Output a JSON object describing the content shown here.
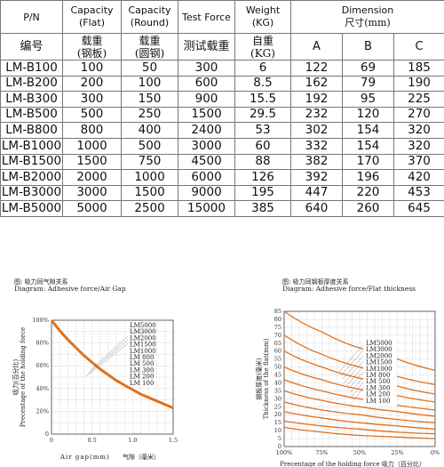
{
  "table": {
    "header": {
      "pn": "P/N",
      "cap_flat": [
        "Capacity",
        "(Flat)"
      ],
      "cap_round": [
        "Capacity",
        "(Round)"
      ],
      "test_force": "Test Force",
      "weight": [
        "Weight",
        "(KG)"
      ],
      "dimension": [
        "Dimension",
        "尺寸(mm)"
      ]
    },
    "subheader": {
      "pn": "编号",
      "cap_flat": [
        "载重",
        "(钢板)"
      ],
      "cap_round": [
        "载重",
        "(圆钢)"
      ],
      "test_force": "测试载重",
      "weight": [
        "自重",
        "(KG)"
      ],
      "a": "A",
      "b": "B",
      "c": "C"
    },
    "rows": [
      {
        "pn": "LM-B100",
        "flat": "100",
        "round": "50",
        "test": "300",
        "weight": "6",
        "a": "122",
        "b": "69",
        "c": "185"
      },
      {
        "pn": "LM-B200",
        "flat": "200",
        "round": "100",
        "test": "600",
        "weight": "8.5",
        "a": "162",
        "b": "79",
        "c": "190"
      },
      {
        "pn": "LM-B300",
        "flat": "300",
        "round": "150",
        "test": "900",
        "weight": "15.5",
        "a": "192",
        "b": "95",
        "c": "225"
      },
      {
        "pn": "LM-B500",
        "flat": "500",
        "round": "250",
        "test": "1500",
        "weight": "29.5",
        "a": "232",
        "b": "120",
        "c": "270"
      },
      {
        "pn": "LM-B800",
        "flat": "800",
        "round": "400",
        "test": "2400",
        "weight": "53",
        "a": "302",
        "b": "154",
        "c": "320"
      },
      {
        "pn": "LM-B1000",
        "flat": "1000",
        "round": "500",
        "test": "3000",
        "weight": "60",
        "a": "332",
        "b": "154",
        "c": "320"
      },
      {
        "pn": "LM-B1500",
        "flat": "1500",
        "round": "750",
        "test": "4500",
        "weight": "88",
        "a": "382",
        "b": "170",
        "c": "370"
      },
      {
        "pn": "LM-B2000",
        "flat": "2000",
        "round": "1000",
        "test": "6000",
        "weight": "126",
        "a": "392",
        "b": "196",
        "c": "420"
      },
      {
        "pn": "LM-B3000",
        "flat": "3000",
        "round": "1500",
        "test": "9000",
        "weight": "195",
        "a": "447",
        "b": "220",
        "c": "453"
      },
      {
        "pn": "LM-B5000",
        "flat": "5000",
        "round": "2500",
        "test": "15000",
        "weight": "385",
        "a": "640",
        "b": "260",
        "c": "645"
      }
    ]
  },
  "charts": {
    "left": {
      "caption_cn": "图: 吸力同气隙关系",
      "caption_en": "Diagram: Adhesive force/Air Gap",
      "ylabel_cn": "吸力(百分比)",
      "ylabel_en": "Precentage of the holding force",
      "xlabel_en": "Air gap(mm)",
      "xlabel_cn": "气隙（毫米）",
      "legend": [
        "LM5000",
        "LM3000",
        "LM2000",
        "LM1500",
        "LM1000",
        "LM  800",
        "LM  500",
        "LM  300",
        "LM  200",
        "LM  100"
      ],
      "line_color": "#e0701e"
    },
    "right": {
      "caption_cn": "图: 吸力同钢板厚度关系",
      "caption_en": "Diagram: Adhesive force/Flat thickness",
      "ylabel_cn": "钢板厚度(毫米)",
      "ylabel_en": "Thickness of the flat(mm)",
      "xlabel": "Precentage of the holding force 吸力（百分比）",
      "legend": [
        "LM5000",
        "LM3000",
        "LM2000",
        "LM1500",
        "LM1000",
        "LM  800",
        "LM  500",
        "LM  300",
        "LM  200",
        "LM  100"
      ],
      "line_color": "#e0701e"
    }
  },
  "chart_data": [
    {
      "type": "line",
      "xlabel": "Air gap(mm) 气隙（毫米）",
      "ylabel": "Precentage of the holding force",
      "xlim": [
        0,
        1.5
      ],
      "ylim": [
        0,
        100
      ],
      "x_ticks": [
        "0",
        "0.5",
        "1.0",
        "1.5"
      ],
      "y_ticks": [
        "0",
        "20%",
        "40%",
        "60%",
        "80%",
        "100%"
      ],
      "grid": true,
      "series": [
        {
          "x": [
            0,
            0.1,
            0.2,
            0.3,
            0.4,
            0.5,
            0.6,
            0.7,
            0.8,
            0.9,
            1.0,
            1.1,
            1.2,
            1.3,
            1.4,
            1.5
          ],
          "y": [
            100,
            91,
            83,
            76,
            69,
            63,
            57,
            52,
            47,
            43,
            39,
            35,
            32,
            29,
            26,
            23
          ]
        }
      ]
    },
    {
      "type": "line",
      "xlabel": "Precentage of the holding force 吸力（百分比）",
      "ylabel": "Thickness of the flat(mm)",
      "x_ticks": [
        "100%",
        "75%",
        "50%",
        "25%",
        "0%"
      ],
      "y_ticks": [
        "0",
        "5",
        "10",
        "15",
        "20",
        "25",
        "30",
        "35",
        "40",
        "45",
        "50",
        "55",
        "60",
        "65",
        "70",
        "75",
        "80",
        "85"
      ],
      "xlim": [
        100,
        0
      ],
      "ylim": [
        0,
        85
      ],
      "grid": true,
      "series": [
        {
          "name": "LM5000",
          "x": [
            100,
            75,
            50,
            25,
            0
          ],
          "y": [
            85,
            72,
            62,
            55,
            48
          ]
        },
        {
          "name": "LM3000",
          "x": [
            100,
            75,
            50,
            25,
            0
          ],
          "y": [
            70,
            58,
            50,
            44,
            39
          ]
        },
        {
          "name": "LM2000",
          "x": [
            100,
            75,
            50,
            25,
            0
          ],
          "y": [
            60,
            50,
            43,
            38,
            33
          ]
        },
        {
          "name": "LM1500",
          "x": [
            100,
            75,
            50,
            25,
            0
          ],
          "y": [
            50,
            42,
            36,
            32,
            28
          ]
        },
        {
          "name": "LM1000",
          "x": [
            100,
            75,
            50,
            25,
            0
          ],
          "y": [
            42,
            35,
            30,
            26,
            23
          ]
        },
        {
          "name": "LM  800",
          "x": [
            100,
            75,
            50,
            25,
            0
          ],
          "y": [
            35,
            29,
            25,
            22,
            19
          ]
        },
        {
          "name": "LM  500",
          "x": [
            100,
            75,
            50,
            25,
            0
          ],
          "y": [
            28,
            23,
            20,
            17,
            15
          ]
        },
        {
          "name": "LM  300",
          "x": [
            100,
            75,
            50,
            25,
            0
          ],
          "y": [
            22,
            18,
            15,
            13,
            11
          ]
        },
        {
          "name": "LM  200",
          "x": [
            100,
            75,
            50,
            25,
            0
          ],
          "y": [
            16,
            13,
            11,
            9,
            8
          ]
        },
        {
          "name": "LM  100",
          "x": [
            100,
            75,
            50,
            25,
            0
          ],
          "y": [
            12,
            9,
            7,
            6,
            5
          ]
        }
      ]
    }
  ]
}
